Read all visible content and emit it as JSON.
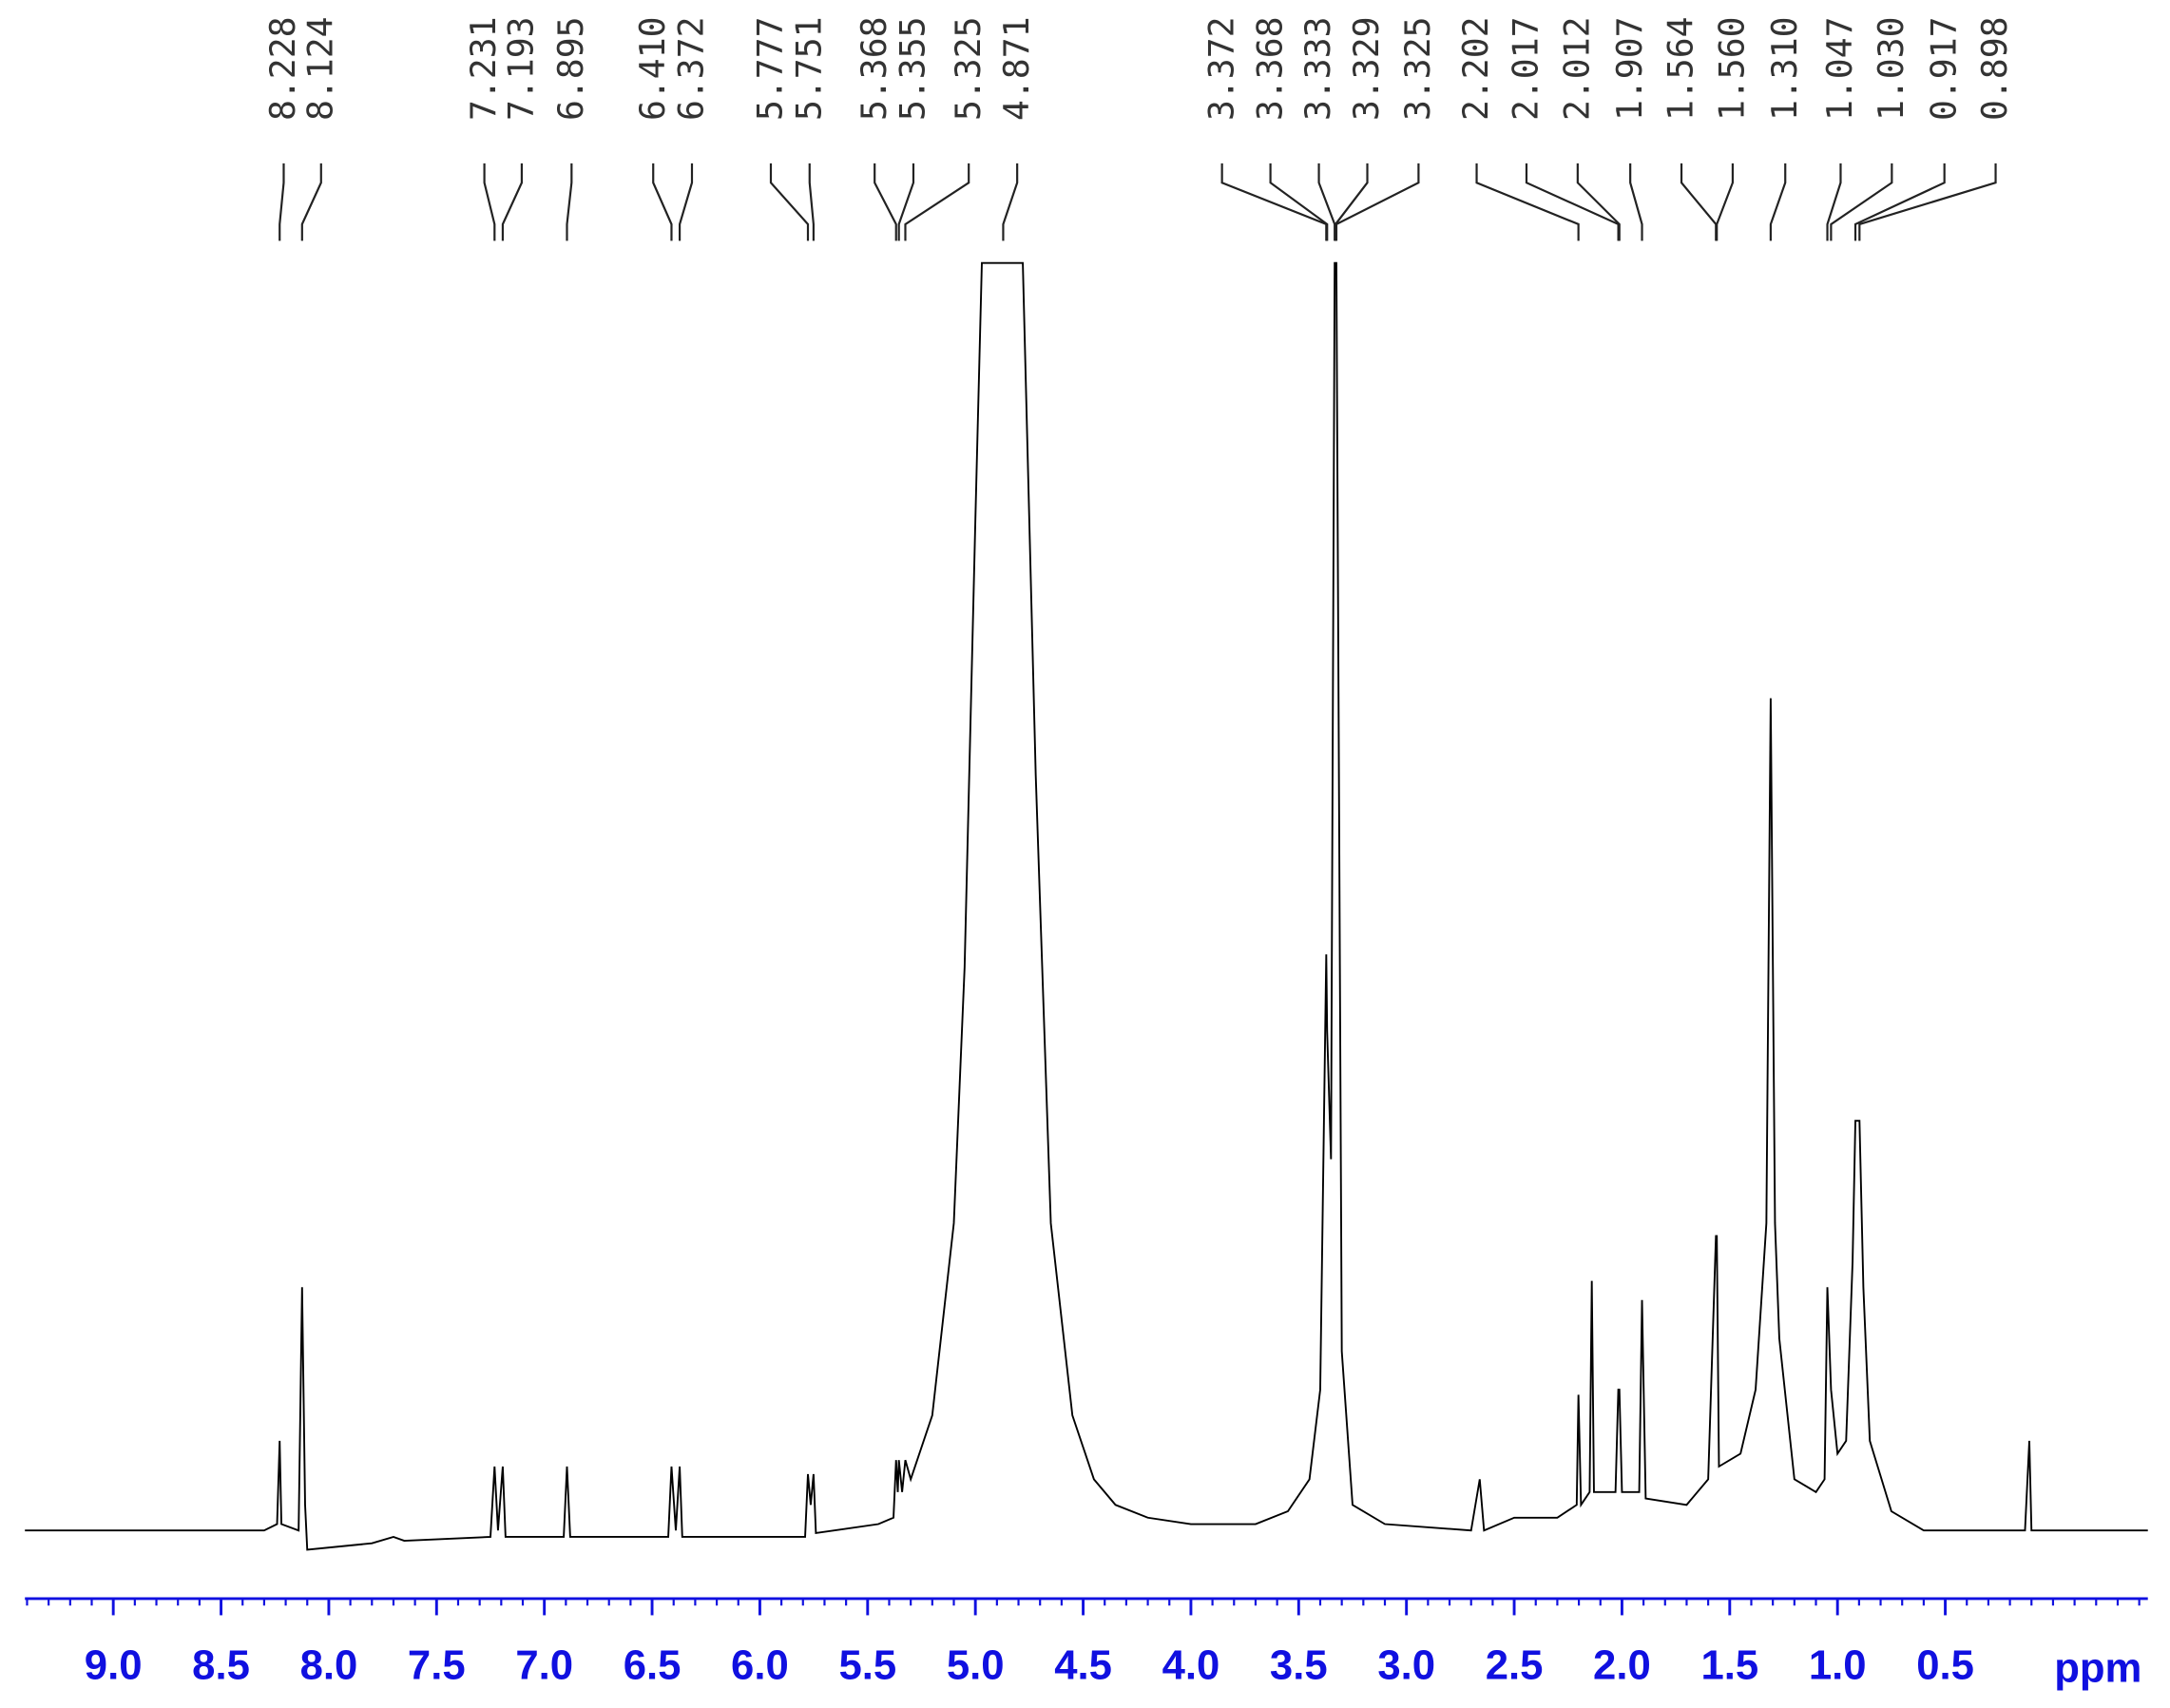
{
  "chart_data": {
    "type": "line",
    "xlabel": "ppm",
    "xlim": [
      9.41,
      -0.44
    ],
    "ylim": [
      0,
      100
    ],
    "xticks": [
      {
        "value": 9,
        "label": "9.0"
      },
      8.5,
      {
        "value": 8,
        "label": "8.0"
      },
      7.5,
      {
        "value": 7,
        "label": "7.0"
      },
      6.5,
      {
        "value": 6,
        "label": "6.0"
      },
      5.5,
      {
        "value": 5,
        "label": "5.0"
      },
      4.5,
      {
        "value": 4,
        "label": "4.0"
      },
      3.5,
      {
        "value": 3,
        "label": "3.0"
      },
      2.5,
      {
        "value": 2,
        "label": "2.0"
      },
      1.5,
      {
        "value": 1,
        "label": "1.0"
      },
      0.5
    ],
    "xminorticks": [
      9.4,
      9.3,
      9.2,
      9.1,
      9.0,
      8.9,
      8.8,
      8.7,
      8.6,
      8.5,
      8.4,
      8.3,
      8.2,
      8.1,
      8.0,
      7.9,
      7.8,
      7.7,
      7.6,
      7.5,
      7.4,
      7.3,
      7.2,
      7.1,
      7.0,
      6.9,
      6.8,
      6.7,
      6.6,
      6.5,
      6.4,
      6.3,
      6.2,
      6.1,
      6.0,
      5.9,
      5.8,
      5.7,
      5.6,
      5.5,
      5.4,
      5.3,
      5.2,
      5.1,
      5.0,
      4.9,
      4.8,
      4.7,
      4.6,
      4.5,
      4.4,
      4.3,
      4.2,
      4.1,
      4.0,
      3.9,
      3.8,
      3.7,
      3.6,
      3.5,
      3.4,
      3.3,
      3.2,
      3.1,
      3.0,
      2.9,
      2.8,
      2.7,
      2.6,
      2.5,
      2.4,
      2.3,
      2.2,
      2.1,
      2.0,
      1.9,
      1.8,
      1.7,
      1.6,
      1.5,
      1.4,
      1.3,
      1.2,
      1.1,
      1.0,
      0.9,
      0.8,
      0.7,
      0.6,
      0.5,
      0.4,
      0.3,
      0.2,
      0.1,
      0,
      -0.1,
      -0.2,
      -0.3,
      -0.4
    ],
    "color": "#000000",
    "axis_color": "#1010e0",
    "peaks": [
      {
        "value": 8.228,
        "label": "8.228"
      },
      {
        "value": 8.124,
        "label": "8.124"
      },
      {
        "value": 7.231,
        "label": "7.231"
      },
      {
        "value": 7.193,
        "label": "7.193"
      },
      {
        "value": 6.895,
        "label": "6.895"
      },
      {
        "value": 6.41,
        "label": "6.410"
      },
      {
        "value": 6.372,
        "label": "6.372"
      },
      {
        "value": 5.777,
        "label": "5.777"
      },
      {
        "value": 5.751,
        "label": "5.751"
      },
      {
        "value": 5.368,
        "label": "5.368"
      },
      {
        "value": 5.355,
        "label": "5.355"
      },
      {
        "value": 5.325,
        "label": "5.325"
      },
      {
        "value": 4.871,
        "label": "4.871"
      },
      {
        "value": 3.372,
        "label": "3.372"
      },
      {
        "value": 3.368,
        "label": "3.368"
      },
      {
        "value": 3.333,
        "label": "3.333"
      },
      {
        "value": 3.329,
        "label": "3.329"
      },
      {
        "value": 3.325,
        "label": "3.325"
      },
      {
        "value": 2.202,
        "label": "2.202"
      },
      {
        "value": 2.017,
        "label": "2.017"
      },
      {
        "value": 2.012,
        "label": "2.012"
      },
      {
        "value": 1.907,
        "label": "1.907"
      },
      {
        "value": 1.564,
        "label": "1.564"
      },
      {
        "value": 1.56,
        "label": "1.560"
      },
      {
        "value": 1.31,
        "label": "1.310"
      },
      {
        "value": 1.047,
        "label": "1.047"
      },
      {
        "value": 1.03,
        "label": "1.030"
      },
      {
        "value": 0.917,
        "label": "0.917"
      },
      {
        "value": 0.898,
        "label": "0.898"
      }
    ],
    "x": [
      9.41,
      8.3,
      8.24,
      8.228,
      8.22,
      8.14,
      8.124,
      8.11,
      8.1,
      7.8,
      7.7,
      7.65,
      7.25,
      7.231,
      7.215,
      7.193,
      7.18,
      6.91,
      6.895,
      6.88,
      6.425,
      6.41,
      6.39,
      6.372,
      6.36,
      5.79,
      5.777,
      5.764,
      5.751,
      5.74,
      5.45,
      5.38,
      5.368,
      5.36,
      5.355,
      5.34,
      5.325,
      5.3,
      5.2,
      5.1,
      5.05,
      5.0,
      4.97,
      4.78,
      4.72,
      4.65,
      4.55,
      4.45,
      4.35,
      4.2,
      4.0,
      3.7,
      3.55,
      3.45,
      3.4,
      3.372,
      3.368,
      3.35,
      3.333,
      3.329,
      3.325,
      3.3,
      3.25,
      3.1,
      2.7,
      2.66,
      2.64,
      2.5,
      2.3,
      2.21,
      2.202,
      2.19,
      2.15,
      2.14,
      2.13,
      2.03,
      2.017,
      2.012,
      2.0,
      1.92,
      1.907,
      1.89,
      1.7,
      1.6,
      1.564,
      1.56,
      1.55,
      1.45,
      1.38,
      1.33,
      1.31,
      1.29,
      1.27,
      1.2,
      1.1,
      1.06,
      1.047,
      1.03,
      1.0,
      0.96,
      0.93,
      0.917,
      0.898,
      0.88,
      0.85,
      0.75,
      0.6,
      0.13,
      0.11,
      0.1,
      -0.44
    ],
    "values": [
      1,
      1,
      1.5,
      8,
      1.5,
      1,
      20,
      3,
      -0.5,
      0,
      0.5,
      0.2,
      0.5,
      6,
      1,
      6,
      0.5,
      0.5,
      6,
      0.5,
      0.5,
      6,
      1,
      6,
      0.5,
      0.5,
      5.4,
      3,
      5.4,
      0.8,
      1.5,
      2,
      6.5,
      4,
      6.5,
      4,
      6.5,
      5,
      10,
      25,
      45,
      80,
      100,
      100,
      60,
      25,
      10,
      5,
      3,
      2,
      1.5,
      1.5,
      2.5,
      5,
      12,
      46,
      40,
      30,
      100,
      100,
      100,
      15,
      3,
      1.5,
      1,
      5,
      1,
      2,
      2,
      3,
      11.6,
      3,
      4,
      20.5,
      4,
      4,
      12,
      12,
      4,
      4,
      19,
      3.5,
      3,
      5,
      24,
      24,
      6,
      7,
      12,
      25,
      66,
      25,
      16,
      5,
      4,
      5,
      20,
      12,
      7,
      8,
      22,
      33,
      33,
      20,
      8,
      2.5,
      1,
      1,
      8,
      1,
      1
    ]
  }
}
